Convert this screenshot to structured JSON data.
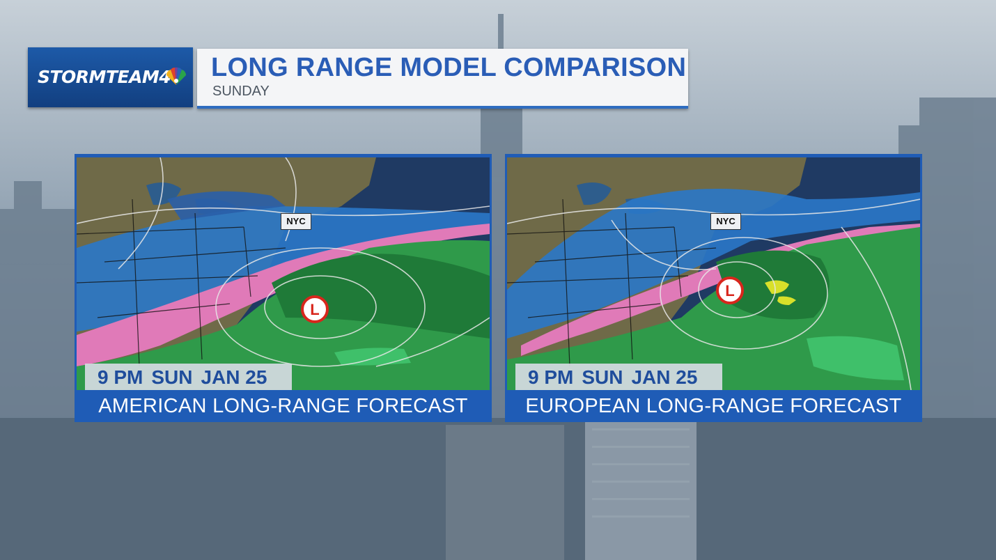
{
  "brand": {
    "name": "STORMTEAM4",
    "logo_icon": "peacock-icon"
  },
  "header": {
    "title": "LONG RANGE MODEL COMPARISON",
    "subtitle": "SUNDAY"
  },
  "panels": [
    {
      "caption": "AMERICAN LONG-RANGE FORECAST",
      "time": {
        "hour": "9 PM",
        "day": "SUN",
        "date": "JAN 25"
      },
      "city": "NYC",
      "low_letter": "L"
    },
    {
      "caption": "EUROPEAN LONG-RANGE FORECAST",
      "time": {
        "hour": "9 PM",
        "day": "SUN",
        "date": "JAN 25"
      },
      "city": "NYC",
      "low_letter": "L"
    }
  ],
  "colors": {
    "brand_blue": "#1f5cb6",
    "title_blue": "#2a5db6",
    "snow_blue": "#2a78c8",
    "ice_pink": "#e07ab8",
    "rain_green": "#2f9a4a",
    "low_red": "#d8261c"
  }
}
